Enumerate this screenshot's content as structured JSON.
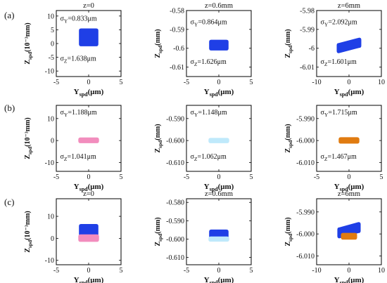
{
  "figure": {
    "row_labels": [
      "(a)",
      "(b)",
      "(c)"
    ]
  },
  "chart_data": [
    {
      "type": "scatter",
      "row": 0,
      "col": 0,
      "title": "z=0",
      "xlabel_main": "Y",
      "xlabel_sub": "spd",
      "xlabel_unit": "(μm)",
      "ylabel_main": "Z",
      "ylabel_sub": "spd",
      "ylabel_unit": "(10⁻³mm)",
      "xlim": [
        -5,
        5
      ],
      "ylim": [
        -12,
        12
      ],
      "xticks": [
        -5,
        0,
        5
      ],
      "xtick_labels": [
        "-5",
        "0",
        "5"
      ],
      "yticks": [
        10,
        5,
        0,
        -5,
        -10
      ],
      "ytick_labels": [
        "10",
        "5",
        "0",
        "-5",
        "-10"
      ],
      "annotations": [
        {
          "sym": "σ",
          "sub": "Y",
          "text": "=0.833μm",
          "x": -4.4,
          "y": 8.3
        },
        {
          "sym": "σ",
          "sub": "Z",
          "text": "=1.638μm",
          "x": -4.4,
          "y": -6.2
        }
      ],
      "series": [
        {
          "color": "#1f3fe6",
          "x_range": [
            -1.5,
            1.5
          ],
          "y_range": [
            -1.0,
            5.5
          ],
          "skew": 0
        }
      ]
    },
    {
      "type": "scatter",
      "row": 0,
      "col": 1,
      "title": "z=0.6mm",
      "xlabel_main": "Y",
      "xlabel_sub": "spd",
      "xlabel_unit": "(μm)",
      "ylabel_main": "Z",
      "ylabel_sub": "spd",
      "ylabel_unit": "(mm)",
      "xlim": [
        -5,
        5
      ],
      "ylim": [
        -0.615,
        -0.58
      ],
      "xticks": [
        -5,
        0,
        5
      ],
      "xtick_labels": [
        "-5",
        "0",
        "5"
      ],
      "yticks": [
        -0.58,
        -0.59,
        -0.6,
        -0.61
      ],
      "ytick_labels": [
        "-0.58",
        "-0.59",
        "-0.6",
        "-0.61"
      ],
      "annotations": [
        {
          "sym": "σ",
          "sub": "Y",
          "text": "=0.864μm",
          "x": -4.4,
          "y": -0.5872
        },
        {
          "sym": "σ",
          "sub": "Z",
          "text": "=1.626μm",
          "x": -4.4,
          "y": -0.6083
        }
      ],
      "series": [
        {
          "color": "#1f3fe6",
          "x_range": [
            -1.5,
            1.5
          ],
          "y_range": [
            -0.6012,
            -0.5955
          ],
          "skew": 0
        }
      ]
    },
    {
      "type": "scatter",
      "row": 0,
      "col": 2,
      "title": "z=6mm",
      "xlabel_main": "Y",
      "xlabel_sub": "spd",
      "xlabel_unit": "(μm)",
      "ylabel_main": "Z",
      "ylabel_sub": "spd",
      "ylabel_unit": "(mm)",
      "xlim": [
        -10,
        10
      ],
      "ylim": [
        -6.015,
        -5.98
      ],
      "xticks": [
        -10,
        0,
        10
      ],
      "xtick_labels": [
        "-10",
        "0",
        "10"
      ],
      "yticks": [
        -5.98,
        -5.99,
        -6.0,
        -6.01
      ],
      "ytick_labels": [
        "-5.98",
        "-5.99",
        "-6",
        "-6.01"
      ],
      "annotations": [
        {
          "sym": "σ",
          "sub": "Y",
          "text": "=2.092μm",
          "x": -8.8,
          "y": -5.9872
        },
        {
          "sym": "σ",
          "sub": "Z",
          "text": "=1.601μm",
          "x": -8.8,
          "y": -6.0083
        }
      ],
      "series": [
        {
          "color": "#1f3fe6",
          "x_range": [
            -3.8,
            3.8
          ],
          "y_range": [
            -6.0012,
            -5.9958
          ],
          "skew": 0.0014
        }
      ]
    },
    {
      "type": "scatter",
      "row": 1,
      "col": 0,
      "title": "",
      "xlabel_main": "Y",
      "xlabel_sub": "spd",
      "xlabel_unit": "(μm)",
      "ylabel_main": "Z",
      "ylabel_sub": "spd",
      "ylabel_unit": "(10⁻³mm)",
      "xlim": [
        -5,
        5
      ],
      "ylim": [
        -14,
        16
      ],
      "xticks": [
        -5,
        0,
        5
      ],
      "xtick_labels": [
        "-5",
        "0",
        "5"
      ],
      "yticks": [
        10,
        0,
        -10
      ],
      "ytick_labels": [
        "10",
        "0",
        "-10"
      ],
      "annotations": [
        {
          "sym": "σ",
          "sub": "Y",
          "text": "=1.188μm",
          "x": -4.4,
          "y": 11.8
        },
        {
          "sym": "σ",
          "sub": "Z",
          "text": "=1.041μm",
          "x": -4.4,
          "y": -8.3
        }
      ],
      "series": [
        {
          "color": "#f28dbd",
          "x_range": [
            -1.6,
            1.6
          ],
          "y_range": [
            -1.2,
            1.4
          ],
          "skew": 0
        }
      ]
    },
    {
      "type": "scatter",
      "row": 1,
      "col": 1,
      "title": "",
      "xlabel_main": "Y",
      "xlabel_sub": "spd",
      "xlabel_unit": "(μm)",
      "ylabel_main": "Z",
      "ylabel_sub": "spd",
      "ylabel_unit": "(mm)",
      "xlim": [
        -5,
        5
      ],
      "ylim": [
        -0.614,
        -0.584
      ],
      "xticks": [
        -5,
        0,
        5
      ],
      "xtick_labels": [
        "-5",
        "0",
        "5"
      ],
      "yticks": [
        -0.59,
        -0.6,
        -0.61
      ],
      "ytick_labels": [
        "-0.590",
        "-0.600",
        "-0.610"
      ],
      "annotations": [
        {
          "sym": "σ",
          "sub": "Y",
          "text": "=1.148μm",
          "x": -4.4,
          "y": -0.5882
        },
        {
          "sym": "σ",
          "sub": "Z",
          "text": "=1.062μm",
          "x": -4.4,
          "y": -0.6083
        }
      ],
      "series": [
        {
          "color": "#bfe9fb",
          "x_range": [
            -1.6,
            1.6
          ],
          "y_range": [
            -0.6012,
            -0.5988
          ],
          "skew": 0
        }
      ]
    },
    {
      "type": "scatter",
      "row": 1,
      "col": 2,
      "title": "",
      "xlabel_main": "Y",
      "xlabel_sub": "spd",
      "xlabel_unit": "(μm)",
      "ylabel_main": "Z",
      "ylabel_sub": "spd",
      "ylabel_unit": "(mm)",
      "xlim": [
        -5,
        5
      ],
      "ylim": [
        -6.014,
        -5.984
      ],
      "xticks": [
        -5,
        0,
        5
      ],
      "xtick_labels": [
        "-5",
        "0",
        "5"
      ],
      "yticks": [
        -5.99,
        -6.0,
        -6.01
      ],
      "ytick_labels": [
        "-5.990",
        "-6.000",
        "-6.010"
      ],
      "annotations": [
        {
          "sym": "σ",
          "sub": "Y",
          "text": "=1.715μm",
          "x": -4.4,
          "y": -5.9882
        },
        {
          "sym": "σ",
          "sub": "Z",
          "text": "=1.467μm",
          "x": -4.4,
          "y": -6.0083
        }
      ],
      "series": [
        {
          "color": "#e07b10",
          "x_range": [
            -1.6,
            1.6
          ],
          "y_range": [
            -6.0014,
            -5.9985
          ],
          "skew": 0
        }
      ]
    },
    {
      "type": "scatter",
      "row": 2,
      "col": 0,
      "title": "z=0",
      "xlabel_main": "Y",
      "xlabel_sub": "spd",
      "xlabel_unit": "(μm)",
      "ylabel_main": "Z",
      "ylabel_sub": "spd",
      "ylabel_unit": "(10⁻³mm)",
      "xlim": [
        -5,
        5
      ],
      "ylim": [
        -12,
        18
      ],
      "xticks": [
        -5,
        0,
        5
      ],
      "xtick_labels": [
        "-5",
        "0",
        "5"
      ],
      "yticks": [
        10,
        0,
        -10
      ],
      "ytick_labels": [
        "10",
        "0",
        "-10"
      ],
      "annotations": [],
      "series": [
        {
          "color": "#1f3fe6",
          "x_range": [
            -1.5,
            1.5
          ],
          "y_range": [
            1.0,
            6.5
          ],
          "skew": 0
        },
        {
          "color": "#f28dbd",
          "x_range": [
            -1.6,
            1.6
          ],
          "y_range": [
            -1.6,
            1.8
          ],
          "skew": 0
        }
      ]
    },
    {
      "type": "scatter",
      "row": 2,
      "col": 1,
      "title": "z=0.6mm",
      "xlabel_main": "Y",
      "xlabel_sub": "spd",
      "xlabel_unit": "(μm)",
      "ylabel_main": "Z",
      "ylabel_sub": "spd",
      "ylabel_unit": "(mm)",
      "xlim": [
        -5,
        5
      ],
      "ylim": [
        -0.614,
        -0.578
      ],
      "xticks": [
        -5,
        0,
        5
      ],
      "xtick_labels": [
        "-5",
        "0",
        "5"
      ],
      "yticks": [
        -0.58,
        -0.59,
        -0.6,
        -0.61
      ],
      "ytick_labels": [
        "-0.580",
        "-0.590",
        "-0.600",
        "-0.610"
      ],
      "annotations": [],
      "series": [
        {
          "color": "#1f3fe6",
          "x_range": [
            -1.5,
            1.5
          ],
          "y_range": [
            -0.5998,
            -0.5948
          ],
          "skew": 0
        },
        {
          "color": "#bfe9fb",
          "x_range": [
            -1.6,
            1.6
          ],
          "y_range": [
            -0.6014,
            -0.5986
          ],
          "skew": 0
        }
      ]
    },
    {
      "type": "scatter",
      "row": 2,
      "col": 2,
      "title": "z=6mm",
      "xlabel_main": "Y",
      "xlabel_sub": "spd",
      "xlabel_unit": "(μm)",
      "ylabel_main": "Z",
      "ylabel_sub": "spd",
      "ylabel_unit": "(mm)",
      "xlim": [
        -10,
        10
      ],
      "ylim": [
        -6.014,
        -5.984
      ],
      "xticks": [
        -10,
        0,
        10
      ],
      "xtick_labels": [
        "-10",
        "0",
        "10"
      ],
      "yticks": [
        -5.99,
        -6.0,
        -6.01
      ],
      "ytick_labels": [
        "-5.990",
        "-6.000",
        "-6.010"
      ],
      "annotations": [],
      "series": [
        {
          "color": "#1f3fe6",
          "x_range": [
            -3.6,
            3.6
          ],
          "y_range": [
            -6.0008,
            -5.9958
          ],
          "skew": 0.0012
        },
        {
          "color": "#e07b10",
          "x_range": [
            -2.5,
            2.5
          ],
          "y_range": [
            -6.0026,
            -5.9995
          ],
          "skew": 0
        }
      ]
    }
  ]
}
